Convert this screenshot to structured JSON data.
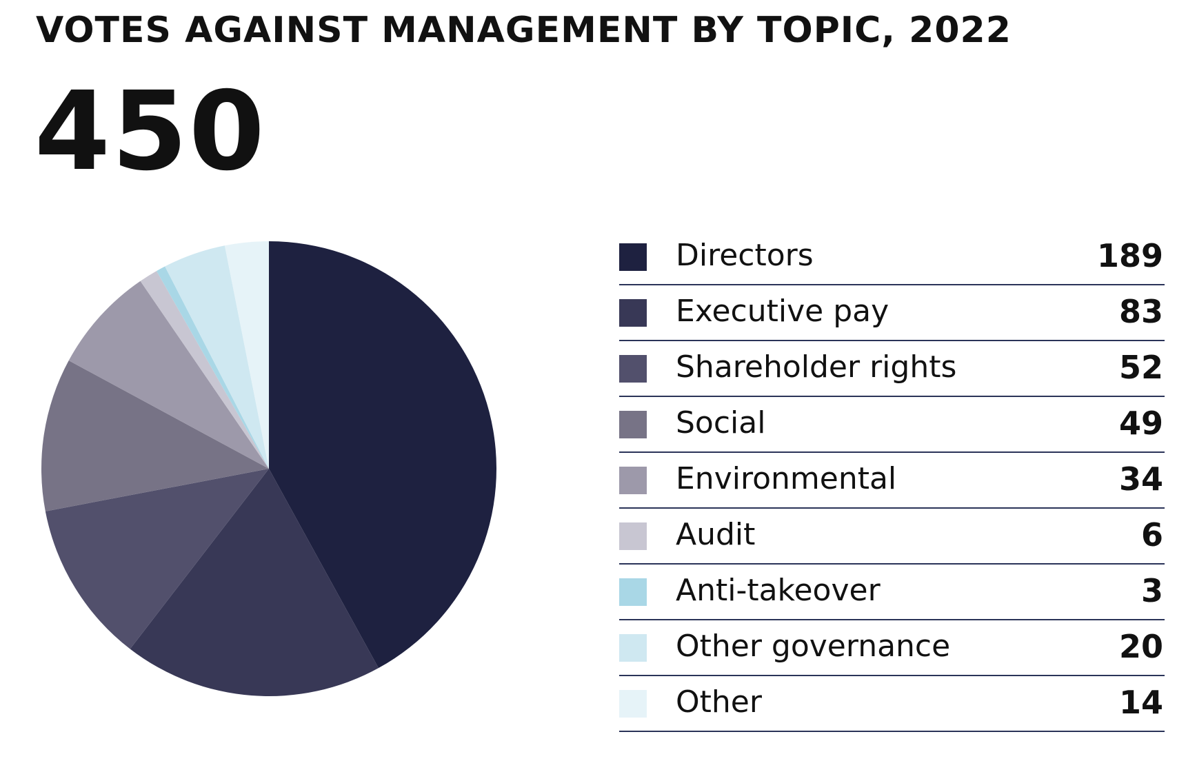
{
  "chart_data": {
    "type": "pie",
    "title": "VOTES AGAINST MANAGEMENT BY TOPIC, 2022",
    "total": "450",
    "slices": [
      {
        "label": "Directors",
        "value": 189,
        "display": "189",
        "color": "#1e2140"
      },
      {
        "label": "Executive pay",
        "value": 83,
        "display": "83",
        "color": "#383856"
      },
      {
        "label": "Shareholder rights",
        "value": 52,
        "display": "52",
        "color": "#52506c"
      },
      {
        "label": "Social",
        "value": 49,
        "display": "49",
        "color": "#777386"
      },
      {
        "label": "Environmental",
        "value": 34,
        "display": "34",
        "color": "#9d99aa"
      },
      {
        "label": "Audit",
        "value": 6,
        "display": "6",
        "color": "#c8c6d2"
      },
      {
        "label": "Anti-takeover",
        "value": 3,
        "display": "3",
        "color": "#a9d7e6"
      },
      {
        "label": "Other governance",
        "value": 20,
        "display": "20",
        "color": "#cfe8f1"
      },
      {
        "label": "Other",
        "value": 14,
        "display": "14",
        "color": "#e6f3f8"
      }
    ],
    "start_angle_deg": 0,
    "direction": "clockwise",
    "legend_position": "right"
  }
}
